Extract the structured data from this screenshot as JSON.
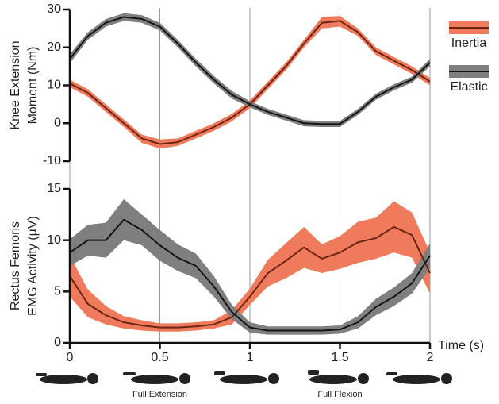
{
  "chart_data": [
    {
      "type": "line-band",
      "ylabel": [
        "Knee Extension",
        "Moment (Nm)"
      ],
      "x": [
        0,
        0.1,
        0.2,
        0.3,
        0.4,
        0.5,
        0.6,
        0.7,
        0.8,
        0.9,
        1,
        1.1,
        1.2,
        1.3,
        1.4,
        1.5,
        1.6,
        1.7,
        1.8,
        1.9,
        2
      ],
      "xlim": [
        0,
        2
      ],
      "ylim": [
        -10,
        30
      ],
      "yticks": [
        -10,
        0,
        10,
        20,
        30
      ],
      "legend": "right",
      "series": [
        {
          "name": "Inertia",
          "color": "#f07b5c",
          "line_color": "#6e2413",
          "values": [
            10.5,
            8,
            4,
            0,
            -4,
            -5.5,
            -5,
            -3,
            -1,
            1.5,
            5,
            10,
            15,
            21,
            26.5,
            27,
            24,
            19,
            16.5,
            14,
            11
          ],
          "lower": [
            9.5,
            7,
            3,
            -1,
            -5.2,
            -6.7,
            -6,
            -4,
            -2,
            0.5,
            4,
            9,
            14,
            20,
            25,
            25.5,
            23,
            18,
            15.5,
            13,
            10
          ],
          "upper": [
            11.5,
            9,
            5,
            1,
            -3,
            -4.3,
            -4,
            -2,
            0,
            2.5,
            6,
            11,
            16,
            22,
            28,
            28.3,
            25,
            20,
            17.5,
            15,
            12
          ]
        },
        {
          "name": "Elastic",
          "color": "#7f7f7f",
          "line_color": "#151515",
          "values": [
            17,
            23,
            26.5,
            28,
            27.5,
            25.5,
            21,
            16,
            11.5,
            7.5,
            5,
            3,
            1.5,
            0,
            -0.2,
            -0.2,
            3,
            7,
            9.5,
            11.5,
            16
          ],
          "lower": [
            15.8,
            22,
            25.5,
            27,
            26.5,
            24.5,
            20,
            15,
            10.5,
            6.5,
            4.2,
            2.2,
            0.7,
            -0.8,
            -1,
            -1,
            2.2,
            6.2,
            8.7,
            10.7,
            15
          ],
          "upper": [
            18.2,
            24,
            27.5,
            29,
            28.5,
            26.5,
            22,
            17,
            12.5,
            8.5,
            5.8,
            3.8,
            2.3,
            0.8,
            0.6,
            0.6,
            3.8,
            7.8,
            10.3,
            12.3,
            17
          ]
        }
      ]
    },
    {
      "type": "line-band",
      "ylabel": [
        "Rectus Femoris",
        "EMG Activity (µV)"
      ],
      "xlabel": "Time (s)",
      "x": [
        0,
        0.1,
        0.2,
        0.3,
        0.4,
        0.5,
        0.6,
        0.7,
        0.8,
        0.9,
        1,
        1.1,
        1.2,
        1.3,
        1.4,
        1.5,
        1.6,
        1.7,
        1.8,
        1.9,
        2
      ],
      "xlim": [
        0,
        2
      ],
      "xticks": [
        0,
        0.5,
        1,
        1.5,
        2
      ],
      "ylim": [
        0,
        15
      ],
      "yticks": [
        0,
        5,
        10,
        15
      ],
      "grid": true,
      "annotations": [
        "Full Extension",
        "Full Flexion"
      ],
      "series": [
        {
          "name": "Inertia",
          "color": "#f07b5c",
          "line_color": "#6e2413",
          "values": [
            6.5,
            3.8,
            2.7,
            2,
            1.7,
            1.5,
            1.5,
            1.6,
            1.8,
            2.5,
            4.5,
            6.8,
            8,
            9.3,
            8.2,
            8.8,
            9.8,
            10.2,
            11.3,
            10.5,
            6.8
          ],
          "lower": [
            4.5,
            2.5,
            1.8,
            1.4,
            1.2,
            1.1,
            1.1,
            1.2,
            1.4,
            1.8,
            3.7,
            5.5,
            6.3,
            7.3,
            6.8,
            7.2,
            7.8,
            8.2,
            8.8,
            8.3,
            4.8
          ],
          "upper": [
            8.5,
            5.2,
            3.6,
            2.6,
            2.2,
            1.9,
            1.9,
            2,
            2.2,
            3.2,
            5.3,
            8.1,
            9.7,
            11.3,
            9.6,
            10.4,
            11.8,
            12.2,
            13.8,
            12.7,
            8.8
          ]
        },
        {
          "name": "Elastic",
          "color": "#7f7f7f",
          "line_color": "#151515",
          "values": [
            8.8,
            10,
            10,
            12,
            11,
            9.5,
            8.3,
            7.5,
            5.5,
            3,
            1.5,
            1.2,
            1.2,
            1.2,
            1.2,
            1.3,
            2,
            3.5,
            4.5,
            5.8,
            8.5
          ],
          "lower": [
            7.5,
            8.5,
            8.3,
            10,
            9.5,
            8,
            7,
            6.3,
            4.5,
            2.3,
            1,
            0.8,
            0.8,
            0.8,
            0.8,
            0.9,
            1.4,
            2.7,
            3.6,
            4.8,
            7.3
          ],
          "upper": [
            10.1,
            11.5,
            11.7,
            14,
            12.5,
            11,
            9.6,
            8.7,
            6.5,
            3.7,
            2,
            1.6,
            1.6,
            1.6,
            1.6,
            1.7,
            2.6,
            4.3,
            5.4,
            6.8,
            9.7
          ]
        }
      ]
    }
  ]
}
